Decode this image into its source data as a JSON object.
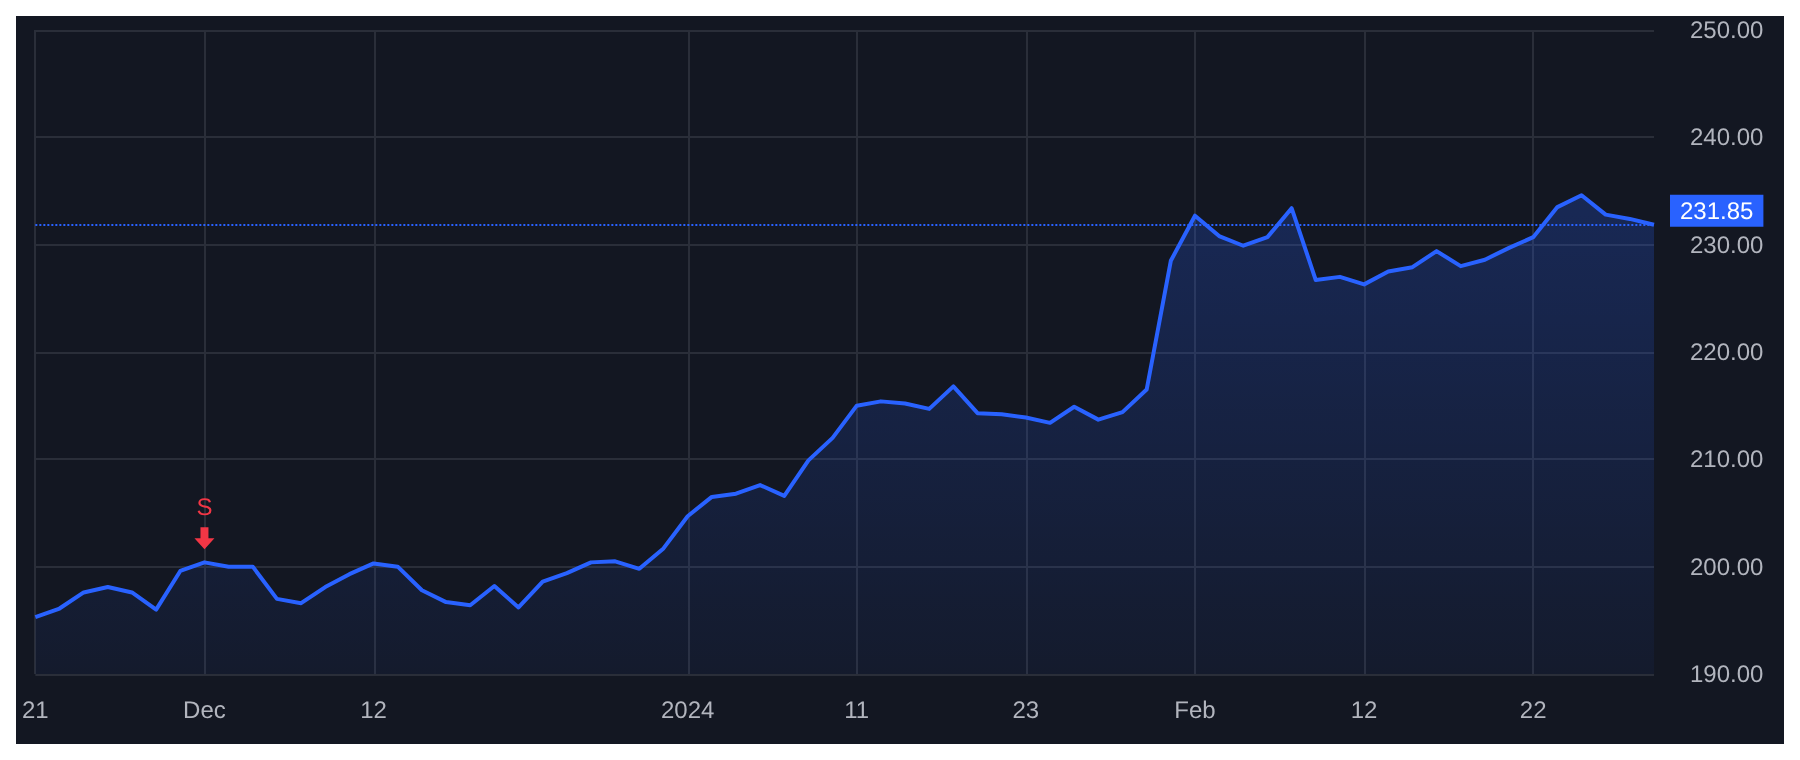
{
  "chart_data": {
    "type": "area",
    "categories": [
      "21",
      null,
      null,
      null,
      null,
      null,
      null,
      "Dec",
      null,
      null,
      null,
      null,
      null,
      null,
      "12",
      null,
      null,
      null,
      null,
      null,
      null,
      null,
      null,
      null,
      null,
      null,
      null,
      "2024",
      null,
      null,
      null,
      null,
      null,
      null,
      "11",
      null,
      null,
      null,
      null,
      null,
      null,
      "23",
      null,
      null,
      null,
      null,
      null,
      null,
      "Feb",
      null,
      null,
      null,
      null,
      null,
      null,
      "12",
      null,
      null,
      null,
      null,
      null,
      null,
      "22",
      null,
      null,
      null,
      null,
      null
    ],
    "series": [
      {
        "color": "#2962ff",
        "values": [
          195.3,
          196.1,
          197.6,
          198.1,
          197.6,
          196.0,
          199.6,
          200.4,
          200.0,
          200.0,
          197.0,
          196.6,
          198.1,
          199.3,
          200.3,
          200.0,
          197.8,
          196.7,
          196.4,
          198.2,
          196.2,
          198.6,
          199.4,
          200.4,
          200.5,
          199.8,
          201.7,
          204.7,
          206.5,
          206.8,
          207.6,
          206.6,
          209.9,
          212.0,
          215.0,
          215.4,
          215.2,
          214.7,
          216.8,
          214.3,
          214.2,
          213.9,
          213.4,
          214.9,
          213.7,
          214.4,
          216.5,
          228.5,
          232.7,
          230.8,
          229.9,
          230.7,
          233.4,
          226.7,
          227.0,
          226.3,
          227.5,
          227.9,
          229.4,
          228.0,
          228.6,
          229.7,
          230.7,
          233.5,
          234.6,
          232.8,
          232.4,
          231.85
        ]
      }
    ],
    "ylim": [
      190,
      250
    ],
    "yticks": [
      {
        "value": 190,
        "label": "190.00"
      },
      {
        "value": 200,
        "label": "200.00"
      },
      {
        "value": 210,
        "label": "210.00"
      },
      {
        "value": 220,
        "label": "220.00"
      },
      {
        "value": 230,
        "label": "230.00"
      },
      {
        "value": 240,
        "label": "240.00"
      },
      {
        "value": 250,
        "label": "250.00"
      }
    ],
    "ref_lines": [
      {
        "axis": "y",
        "value": 231.85,
        "label": "231.85",
        "color": "#2962ff",
        "line_style": "dotted"
      }
    ],
    "annotations": [
      {
        "text": "S",
        "x": "Dec",
        "y": 200.4
      }
    ],
    "grid": true
  }
}
